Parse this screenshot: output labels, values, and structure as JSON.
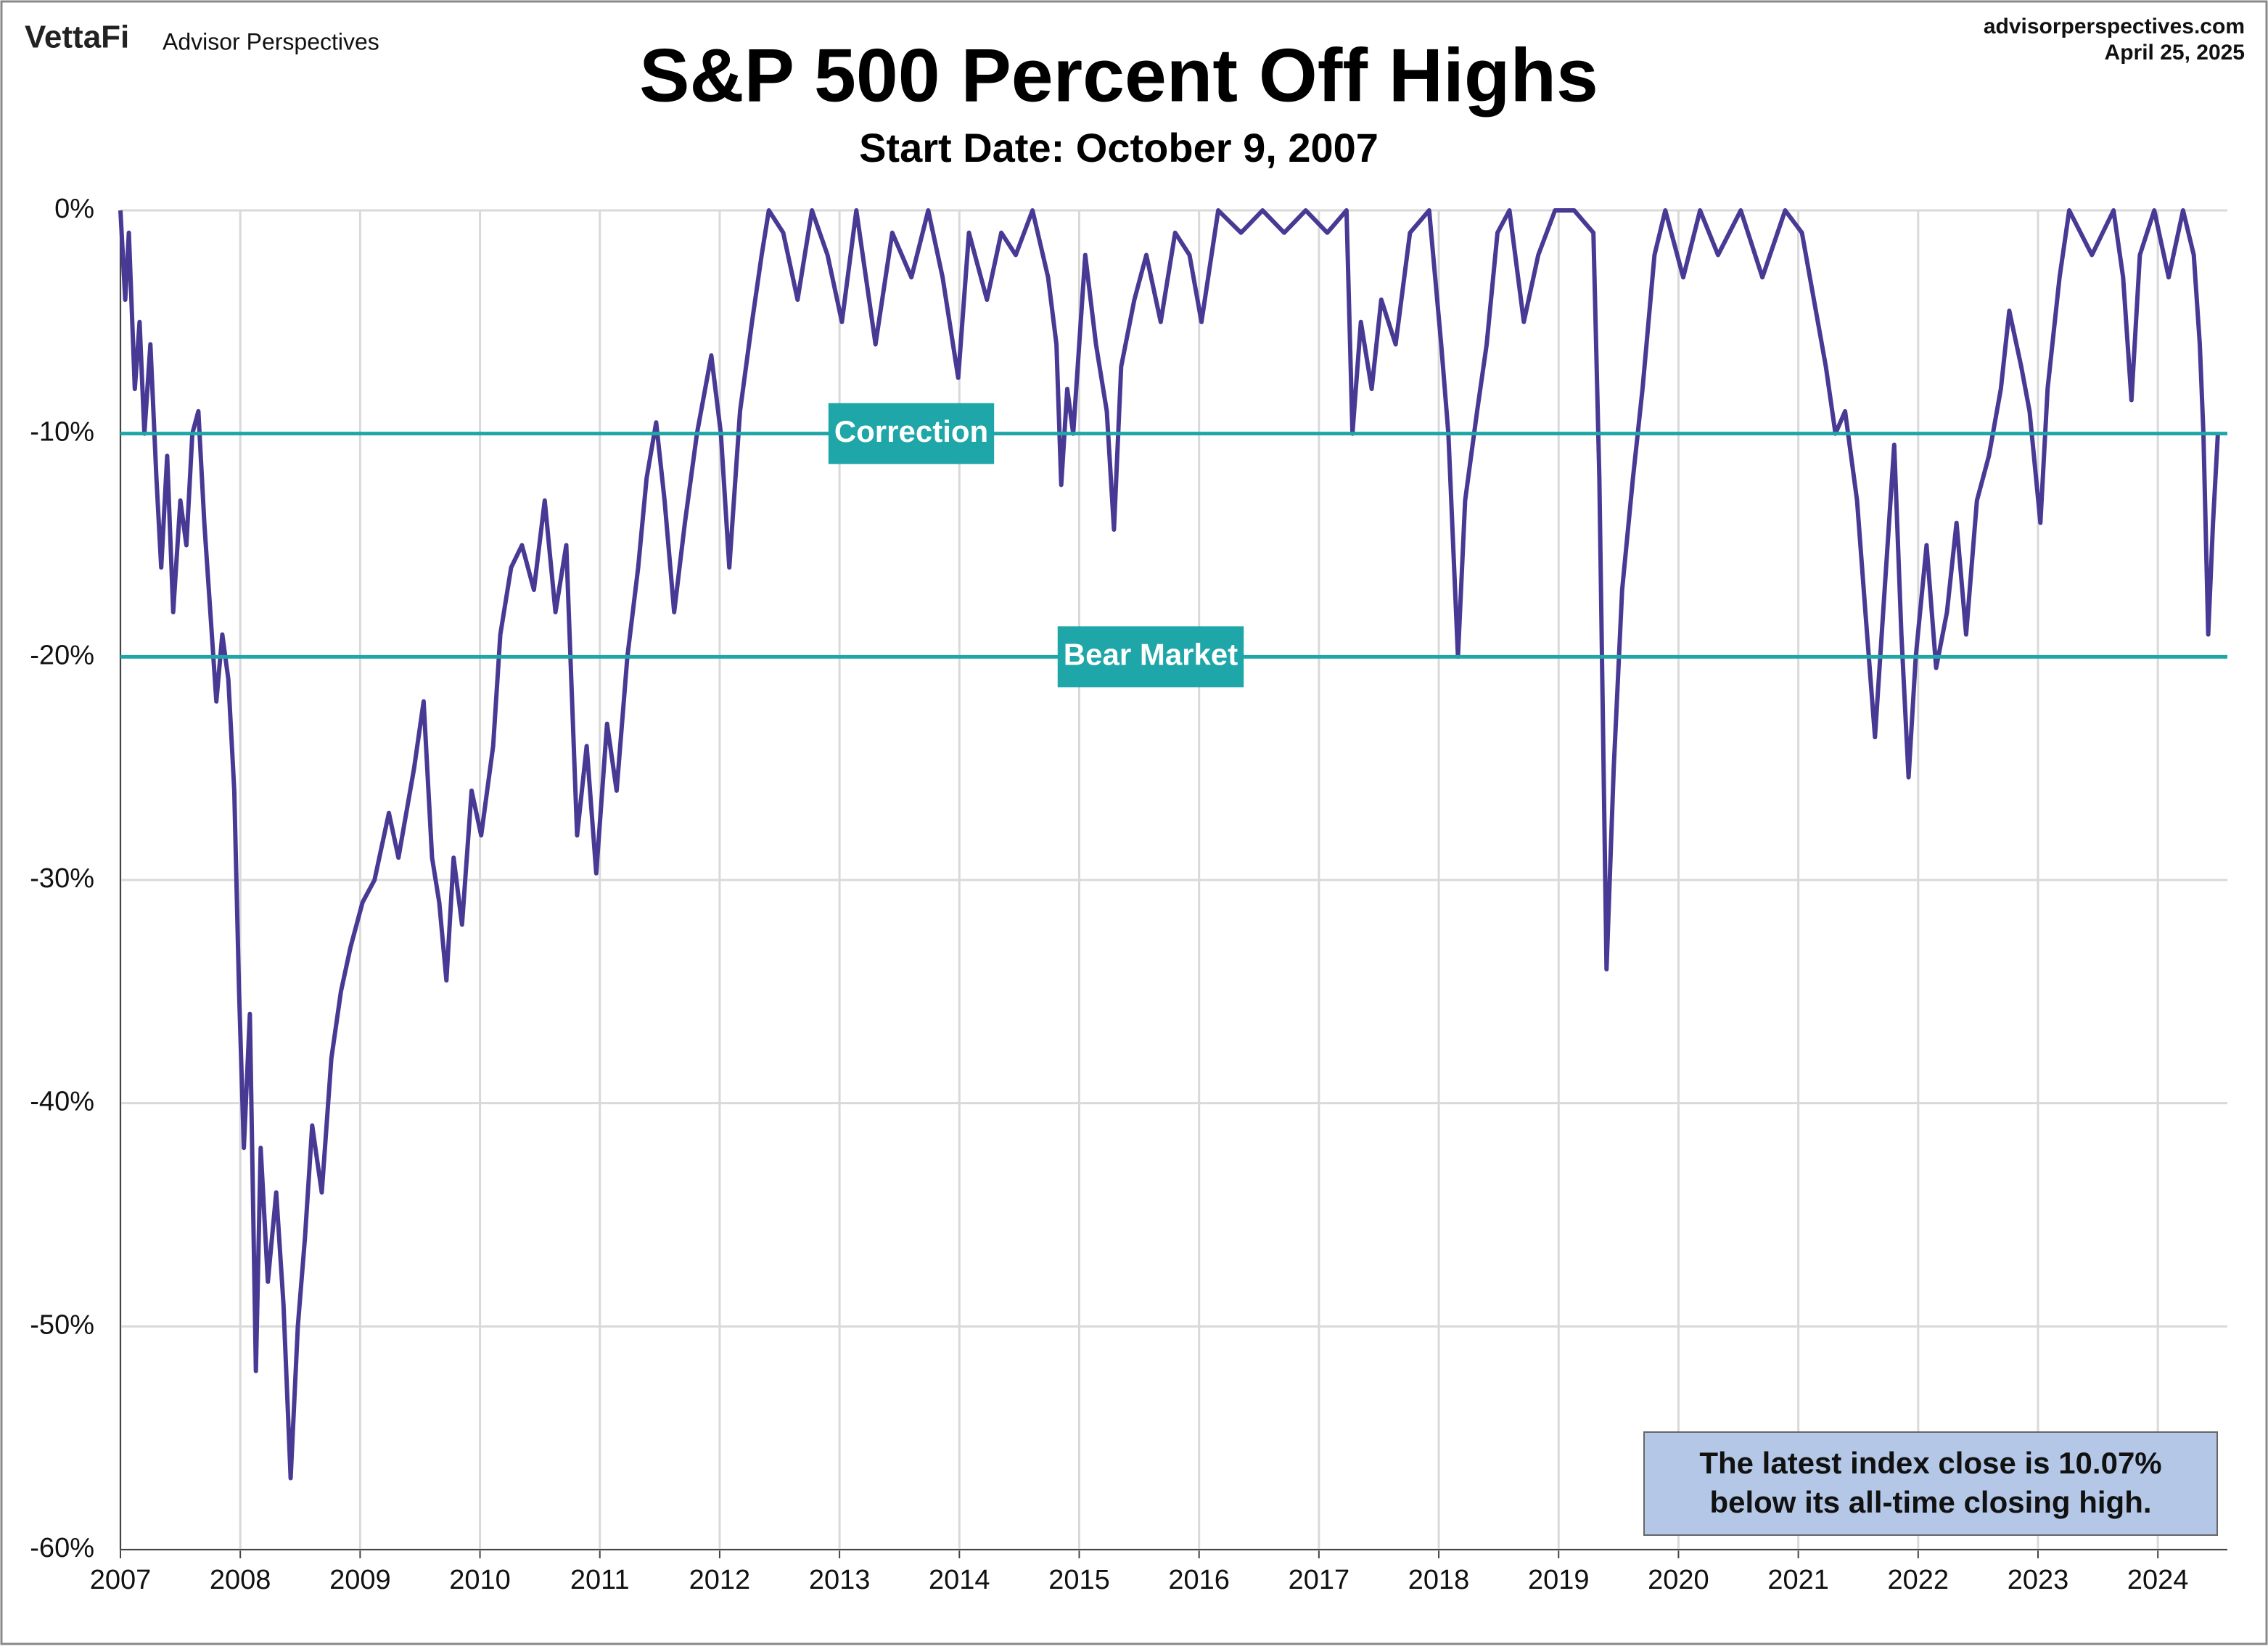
{
  "header": {
    "logo": "VettaFi",
    "brand": "Advisor Perspectives",
    "site": "advisorperspectives.com",
    "date": "April 25, 2025"
  },
  "chart_data": {
    "type": "line",
    "title": "S&P 500 Percent Off Highs",
    "subtitle": "Start Date: October 9, 2007",
    "color": "#483a94",
    "grid": true,
    "xlim": [
      2007,
      2024.58
    ],
    "xticks": [
      2007,
      2008,
      2009,
      2010,
      2011,
      2012,
      2013,
      2014,
      2015,
      2016,
      2017,
      2018,
      2019,
      2020,
      2021,
      2022,
      2023,
      2024
    ],
    "ylim": [
      -60,
      0
    ],
    "yticks": [
      {
        "value": 0,
        "label": "0%"
      },
      {
        "value": -10,
        "label": "-10%"
      },
      {
        "value": -20,
        "label": "-20%"
      },
      {
        "value": -30,
        "label": "-30%"
      },
      {
        "value": -40,
        "label": "-40%"
      },
      {
        "value": -50,
        "label": "-50%"
      },
      {
        "value": -60,
        "label": "-60%"
      }
    ],
    "reference_lines": [
      {
        "value": -10,
        "label": "Correction",
        "color": "#1fa6a8"
      },
      {
        "value": -20,
        "label": "Bear Market",
        "color": "#1fa6a8"
      }
    ],
    "annotation": [
      "The latest index close is 10.07%",
      "below its all-time closing high."
    ],
    "x": [
      2007.0,
      2007.04,
      2007.07,
      2007.12,
      2007.16,
      2007.2,
      2007.25,
      2007.3,
      2007.34,
      2007.39,
      2007.44,
      2007.5,
      2007.55,
      2007.6,
      2007.65,
      2007.7,
      2007.75,
      2007.8,
      2007.85,
      2007.9,
      2007.95,
      2007.99,
      2008.03,
      2008.08,
      2008.13,
      2008.17,
      2008.23,
      2008.3,
      2008.36,
      2008.42,
      2008.48,
      2008.54,
      2008.6,
      2008.68,
      2008.76,
      2008.84,
      2008.92,
      2009.02,
      2009.12,
      2009.24,
      2009.32,
      2009.45,
      2009.53,
      2009.6,
      2009.66,
      2009.72,
      2009.78,
      2009.85,
      2009.93,
      2010.01,
      2010.11,
      2010.17,
      2010.26,
      2010.35,
      2010.45,
      2010.54,
      2010.63,
      2010.72,
      2010.81,
      2010.89,
      2010.97,
      2011.06,
      2011.14,
      2011.23,
      2011.32,
      2011.39,
      2011.47,
      2011.54,
      2011.62,
      2011.71,
      2011.81,
      2011.93,
      2012.01,
      2012.08,
      2012.17,
      2012.27,
      2012.35,
      2012.41,
      2012.53,
      2012.65,
      2012.77,
      2012.9,
      2013.02,
      2013.14,
      2013.3,
      2013.44,
      2013.6,
      2013.74,
      2013.86,
      2013.99,
      2014.08,
      2014.23,
      2014.35,
      2014.47,
      2014.61,
      2014.74,
      2014.81,
      2014.85,
      2014.9,
      2014.95,
      2015.05,
      2015.14,
      2015.23,
      2015.29,
      2015.35,
      2015.46,
      2015.56,
      2015.68,
      2015.8,
      2015.92,
      2016.02,
      2016.16,
      2016.35,
      2016.53,
      2016.71,
      2016.89,
      2017.07,
      2017.23,
      2017.28,
      2017.35,
      2017.44,
      2017.52,
      2017.64,
      2017.76,
      2017.92,
      2018.02,
      2018.08,
      2018.16,
      2018.22,
      2018.32,
      2018.4,
      2018.49,
      2018.59,
      2018.71,
      2018.83,
      2018.97,
      2019.13,
      2019.29,
      2019.34,
      2019.4,
      2019.46,
      2019.53,
      2019.62,
      2019.7,
      2019.8,
      2019.89,
      2020.04,
      2020.18,
      2020.33,
      2020.52,
      2020.7,
      2020.89,
      2021.03,
      2021.13,
      2021.23,
      2021.31,
      2021.39,
      2021.49,
      2021.56,
      2021.64,
      2021.72,
      2021.8,
      2021.86,
      2021.92,
      2021.98,
      2022.07,
      2022.15,
      2022.24,
      2022.32,
      2022.4,
      2022.49,
      2022.59,
      2022.69,
      2022.76,
      2022.86,
      2022.93,
      2023.02,
      2023.08,
      2023.18,
      2023.26,
      2023.45,
      2023.63,
      2023.71,
      2023.78,
      2023.85,
      2023.97,
      2024.09,
      2024.21,
      2024.3,
      2024.35,
      2024.38,
      2024.42,
      2024.46,
      2024.5
    ],
    "values": [
      0,
      -4,
      -1,
      -8,
      -5,
      -10,
      -6,
      -12,
      -16,
      -11,
      -18,
      -13,
      -15,
      -10,
      -9,
      -14,
      -18,
      -22,
      -19,
      -21,
      -26,
      -35,
      -42,
      -36,
      -52,
      -42,
      -48,
      -44,
      -49,
      -56.8,
      -50,
      -46,
      -41,
      -44,
      -38,
      -35,
      -33,
      -31,
      -30,
      -27,
      -29,
      -25,
      -22,
      -29,
      -31,
      -34.5,
      -29,
      -32,
      -26,
      -28,
      -24,
      -19,
      -16,
      -15,
      -17,
      -13,
      -18,
      -15,
      -28,
      -24,
      -29.7,
      -23,
      -26,
      -20,
      -16,
      -12,
      -9.5,
      -13,
      -18,
      -14,
      -10,
      -6.5,
      -10,
      -16,
      -9,
      -5,
      -2,
      0,
      -1,
      -4,
      0,
      -2,
      -5,
      0,
      -6,
      -1,
      -3,
      0,
      -3,
      -7.5,
      -1,
      -4,
      -1,
      -2,
      0,
      -3,
      -6,
      -12.3,
      -8,
      -10,
      -2,
      -6,
      -9,
      -14.3,
      -7,
      -4,
      -2,
      -5,
      -1,
      -2,
      -5,
      0,
      -1,
      0,
      -1,
      0,
      -1,
      0,
      -10,
      -5,
      -8,
      -4,
      -6,
      -1,
      0,
      -6,
      -10,
      -20,
      -13,
      -9,
      -6,
      -1,
      0,
      -5,
      -2,
      0,
      0,
      -1,
      -12,
      -34,
      -25,
      -17,
      -12,
      -8,
      -2,
      0,
      -3,
      0,
      -2,
      0,
      -3,
      0,
      -1,
      -4,
      -7,
      -10,
      -9,
      -13,
      -18,
      -23.6,
      -17,
      -10.5,
      -19,
      -25.4,
      -20,
      -15,
      -20.5,
      -18,
      -14,
      -19,
      -13,
      -11,
      -8,
      -4.5,
      -7,
      -9,
      -14,
      -8,
      -3,
      0,
      -2,
      0,
      -3,
      -8.5,
      -2,
      0,
      -3,
      0,
      -2,
      -6,
      -10,
      -19,
      -14,
      -10.07
    ]
  }
}
